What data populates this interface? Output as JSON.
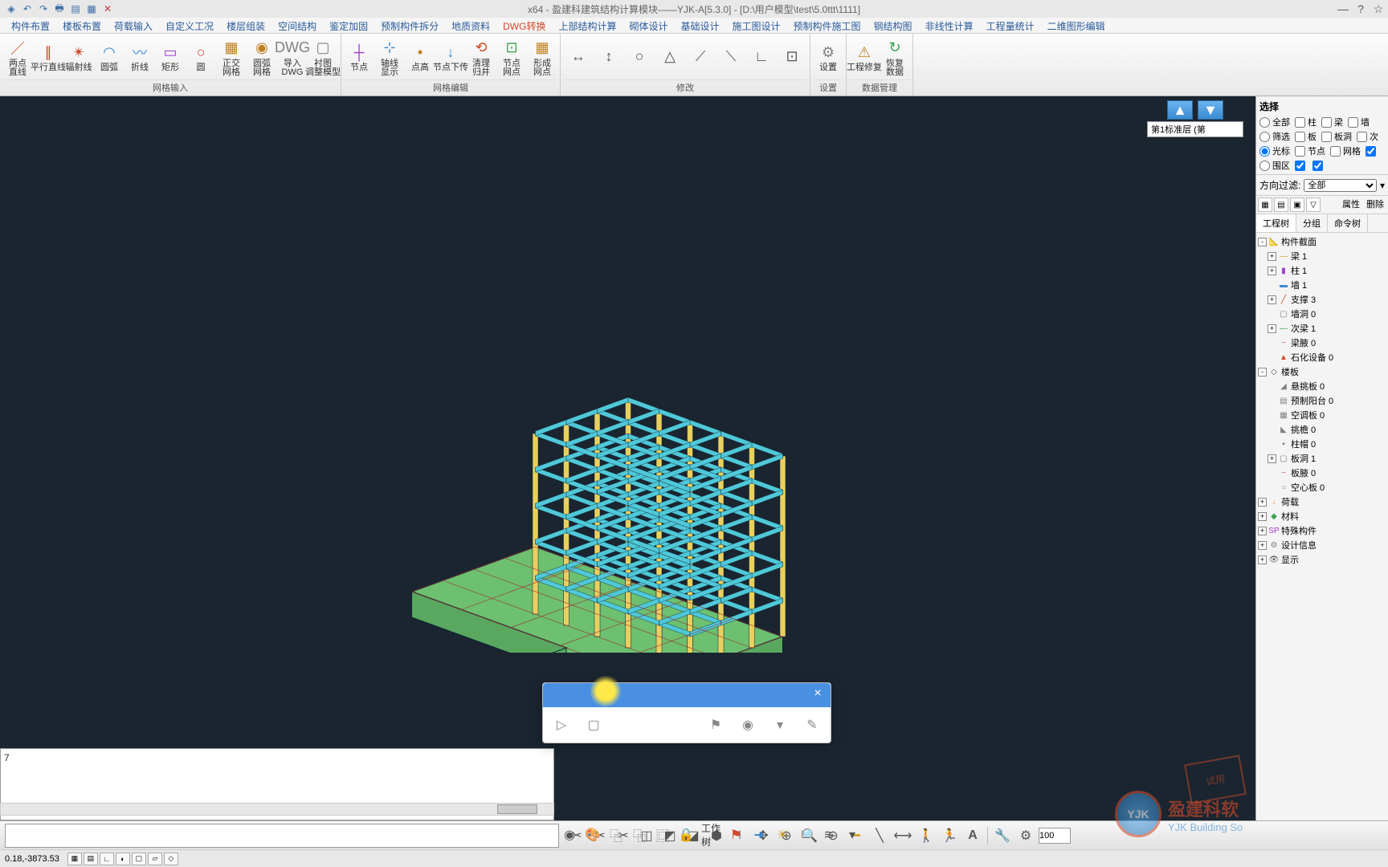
{
  "title": "x64 - 盈建科建筑结构计算模块——YJK-A[5.3.0] - [D:\\用户模型\\test\\5.0ttt\\1111]",
  "qat": [
    "logo",
    "save",
    "undo",
    "redo",
    "print",
    "nav",
    "close"
  ],
  "menus": [
    {
      "label": "构件布置"
    },
    {
      "label": "楼板布置"
    },
    {
      "label": "荷载输入"
    },
    {
      "label": "自定义工况"
    },
    {
      "label": "楼层组装"
    },
    {
      "label": "空间结构"
    },
    {
      "label": "鉴定加固"
    },
    {
      "label": "预制构件拆分"
    },
    {
      "label": "地质资料"
    },
    {
      "label": "DWG转换",
      "active": true
    },
    {
      "label": "上部结构计算"
    },
    {
      "label": "砌体设计"
    },
    {
      "label": "基础设计"
    },
    {
      "label": "施工图设计"
    },
    {
      "label": "预制构件施工图"
    },
    {
      "label": "钢结构图"
    },
    {
      "label": "非线性计算"
    },
    {
      "label": "工程量统计"
    },
    {
      "label": "二维图形编辑"
    }
  ],
  "ribbon": [
    {
      "label": "网格输入",
      "buttons": [
        {
          "l": "两点\n直线",
          "c": "#d04a2a"
        },
        {
          "l": "平行直线",
          "c": "#d04a2a"
        },
        {
          "l": "辐射线",
          "c": "#d04a2a"
        },
        {
          "l": "圆弧",
          "c": "#3a8ad0"
        },
        {
          "l": "折线",
          "c": "#3a8ad0"
        },
        {
          "l": "矩形",
          "c": "#a03ad0"
        },
        {
          "l": "圆",
          "c": "#d04a2a"
        },
        {
          "l": "正交\n网格",
          "c": "#c08020"
        },
        {
          "l": "圆弧\n网格",
          "c": "#c08020"
        },
        {
          "l": "导入\nDWG",
          "c": "#808080"
        },
        {
          "l": "衬图\n调整模型",
          "c": "#808080"
        }
      ]
    },
    {
      "label": "网格编辑",
      "buttons": [
        {
          "l": "节点",
          "c": "#a03ad0"
        },
        {
          "l": "轴线\n显示",
          "c": "#3a8ad0"
        },
        {
          "l": "点高",
          "c": "#c08020"
        },
        {
          "l": "节点下传",
          "c": "#3a8ad0"
        },
        {
          "l": "清理\n归并",
          "c": "#d04a2a"
        },
        {
          "l": "节点\n网点",
          "c": "#3aa050"
        },
        {
          "l": "形成\n网点",
          "c": "#c08020"
        }
      ]
    },
    {
      "label": "修改",
      "buttons": [
        {
          "l": "",
          "c": "#555"
        },
        {
          "l": "",
          "c": "#555"
        },
        {
          "l": "",
          "c": "#555"
        },
        {
          "l": "",
          "c": "#555"
        },
        {
          "l": "",
          "c": "#555"
        },
        {
          "l": "",
          "c": "#555"
        },
        {
          "l": "",
          "c": "#555"
        },
        {
          "l": "",
          "c": "#555"
        }
      ]
    },
    {
      "label": "设置",
      "buttons": [
        {
          "l": "设置",
          "c": "#808080"
        }
      ]
    },
    {
      "label": "数据管理",
      "buttons": [
        {
          "l": "工程修复",
          "c": "#c08020"
        },
        {
          "l": "恢复\n数据",
          "c": "#3aa050"
        }
      ]
    }
  ],
  "floor": {
    "current": "第1标准层 (第"
  },
  "sel": {
    "title": "选择",
    "rows": [
      {
        "t": "r",
        "name": "m",
        "checked": true,
        "l": "全部",
        "boxes": [
          {
            "l": "柱"
          },
          {
            "l": "梁"
          },
          {
            "l": "墙"
          }
        ]
      },
      {
        "t": "r",
        "name": "m",
        "l": "筛选",
        "boxes": [
          {
            "l": "板"
          },
          {
            "l": "板洞"
          },
          {
            "l": "次"
          }
        ]
      },
      {
        "t": "r",
        "name": "m",
        "checked": true,
        "l": "光标",
        "boxes": [
          {
            "l": "节点"
          },
          {
            "l": "网格"
          },
          {
            "l": "",
            "checked": true
          }
        ]
      },
      {
        "t": "r",
        "name": "m",
        "l": "围区",
        "boxes": [
          {
            "l": "",
            "checked": true
          },
          {
            "l": "",
            "checked": true
          }
        ]
      }
    ]
  },
  "filter": {
    "label": "方向过滤:",
    "value": "全部"
  },
  "panel_btns": [
    "属性",
    "删除"
  ],
  "panel_tabs": [
    {
      "l": "工程树",
      "a": true
    },
    {
      "l": "分组"
    },
    {
      "l": "命令树"
    }
  ],
  "tree": [
    {
      "d": 0,
      "t": "-",
      "i": "📐",
      "l": "构件截面"
    },
    {
      "d": 1,
      "t": "+",
      "i": "—",
      "l": "梁 1",
      "c": "#d0a020"
    },
    {
      "d": 1,
      "t": "+",
      "i": "▮",
      "l": "柱 1",
      "c": "#a03ad0"
    },
    {
      "d": 1,
      "t": "",
      "i": "▬",
      "l": "墙 1",
      "c": "#3a8ad0"
    },
    {
      "d": 1,
      "t": "+",
      "i": "╱",
      "l": "支撑 3",
      "c": "#d04a2a"
    },
    {
      "d": 1,
      "t": "",
      "i": "▢",
      "l": "墙洞 0",
      "c": "#808080"
    },
    {
      "d": 1,
      "t": "+",
      "i": "—",
      "l": "次梁 1",
      "c": "#3aa050"
    },
    {
      "d": 1,
      "t": "",
      "i": "~",
      "l": "梁腋 0",
      "c": "#c06080"
    },
    {
      "d": 1,
      "t": "",
      "i": "▲",
      "l": "石化设备 0",
      "c": "#d04a2a"
    },
    {
      "d": 0,
      "t": "-",
      "i": "◇",
      "l": "楼板"
    },
    {
      "d": 1,
      "t": "",
      "i": "◢",
      "l": "悬挑板 0",
      "c": "#808080"
    },
    {
      "d": 1,
      "t": "",
      "i": "▤",
      "l": "预制阳台 0",
      "c": "#808080"
    },
    {
      "d": 1,
      "t": "",
      "i": "▦",
      "l": "空调板 0",
      "c": "#808080"
    },
    {
      "d": 1,
      "t": "",
      "i": "◣",
      "l": "挑檐 0",
      "c": "#808080"
    },
    {
      "d": 1,
      "t": "",
      "i": "▪",
      "l": "柱帽 0",
      "c": "#808080"
    },
    {
      "d": 1,
      "t": "+",
      "i": "▢",
      "l": "板洞 1",
      "c": "#808080"
    },
    {
      "d": 1,
      "t": "",
      "i": "~",
      "l": "板腋 0",
      "c": "#c06080"
    },
    {
      "d": 1,
      "t": "",
      "i": "○",
      "l": "空心板 0",
      "c": "#808080"
    },
    {
      "d": 0,
      "t": "+",
      "i": "↓",
      "l": "荷载",
      "c": "#d0a020"
    },
    {
      "d": 0,
      "t": "+",
      "i": "◆",
      "l": "材料",
      "c": "#3aa050"
    },
    {
      "d": 0,
      "t": "+",
      "i": "SP",
      "l": "特殊构件",
      "c": "#a03ad0"
    },
    {
      "d": 0,
      "t": "+",
      "i": "⚙",
      "l": "设计信息",
      "c": "#808080"
    },
    {
      "d": 0,
      "t": "+",
      "i": "👁",
      "l": "显示",
      "c": "#555"
    }
  ],
  "building": {
    "beam_color": "#4fc8d8",
    "column_color": "#e8d060",
    "base_color": "#6cc070",
    "edge_color": "#1a4050",
    "dark_edge": "#0a2030"
  },
  "cmd_history": [
    "7",
    ""
  ],
  "coords": "0.18,-3873.53",
  "watermark": {
    "logo": "YJK",
    "text": "盈建科软",
    "sub": "YJK Building So",
    "stamp": "试用"
  },
  "spinner_val": "100"
}
